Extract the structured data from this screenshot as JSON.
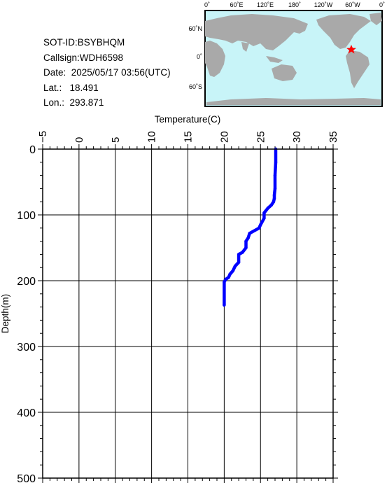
{
  "info": {
    "sot_id": "SOT-ID:BSYBHQM",
    "callsign": "Callsign:WDH6598",
    "date": "Date:  2025/05/17 03:56(UTC)",
    "lat": "Lat.:   18.491",
    "lon": "Lon.:  293.871"
  },
  "map": {
    "top_labels": [
      "0˚",
      "60˚E",
      "120˚E",
      "180˚",
      "120˚W",
      "60˚W",
      "0˚"
    ],
    "left_labels": [
      "60˚N",
      "0˚",
      "60˚S"
    ],
    "ocean_color": "#c8f4f8",
    "land_color": "#a9a9a9",
    "marker_color": "#ff0000",
    "marker": "star-icon"
  },
  "chart_data": {
    "type": "line",
    "title": "",
    "xlabel": "Temperature(C)",
    "ylabel": "Depth(m)",
    "xlim": [
      -5,
      35
    ],
    "ylim": [
      500,
      0
    ],
    "x_ticks": [
      "−5",
      "0",
      "5",
      "10",
      "15",
      "20",
      "25",
      "30",
      "35"
    ],
    "y_ticks": [
      "0",
      "100",
      "200",
      "300",
      "400",
      "500"
    ],
    "grid": true,
    "series": [
      {
        "color": "#0000ff",
        "x": [
          27.1,
          27.1,
          27.0,
          27.0,
          26.9,
          26.9,
          26.8,
          26.5,
          26.0,
          25.5,
          25.5,
          25.0,
          24.8,
          23.5,
          23.3,
          23.0,
          23.0,
          22.5,
          22.0,
          22.0,
          21.5,
          21.2,
          20.8,
          20.6,
          20.2,
          20.0,
          20.0
        ],
        "y": [
          0,
          20,
          40,
          60,
          70,
          75,
          80,
          85,
          90,
          97,
          105,
          115,
          120,
          128,
          135,
          140,
          150,
          157,
          160,
          172,
          178,
          185,
          190,
          195,
          198,
          202,
          237
        ]
      }
    ]
  }
}
